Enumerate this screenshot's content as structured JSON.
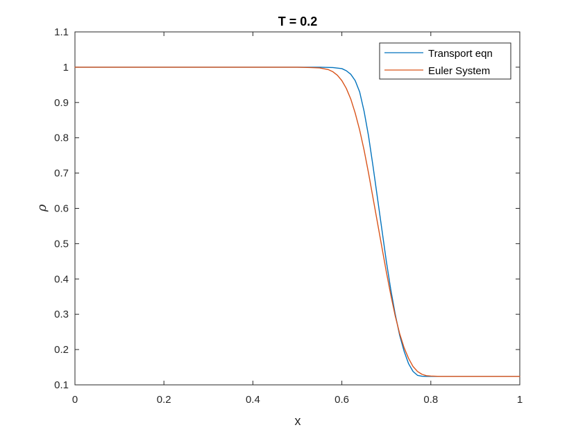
{
  "chart_data": {
    "type": "line",
    "title": "T = 0.2",
    "xlabel": "x",
    "ylabel": "ρ",
    "xlim": [
      0,
      1
    ],
    "ylim": [
      0.1,
      1.1
    ],
    "xticks": [
      "0",
      "0.2",
      "0.4",
      "0.6",
      "0.8",
      "1"
    ],
    "yticks": [
      "0.1",
      "0.2",
      "0.3",
      "0.4",
      "0.5",
      "0.6",
      "0.7",
      "0.8",
      "0.9",
      "1",
      "1.1"
    ],
    "grid": false,
    "legend": "top-right",
    "series": [
      {
        "name": "Transport eqn",
        "color": "#0072BD",
        "x": [
          0,
          0.5,
          0.55,
          0.58,
          0.6,
          0.61,
          0.62,
          0.63,
          0.64,
          0.65,
          0.66,
          0.67,
          0.68,
          0.69,
          0.7,
          0.71,
          0.72,
          0.73,
          0.74,
          0.75,
          0.76,
          0.77,
          0.78,
          0.79,
          0.8,
          0.81,
          0.82,
          0.85,
          0.9,
          1.0
        ],
        "values": [
          1,
          1,
          1,
          0.999,
          0.996,
          0.99,
          0.98,
          0.962,
          0.93,
          0.875,
          0.805,
          0.72,
          0.63,
          0.54,
          0.45,
          0.37,
          0.3,
          0.24,
          0.195,
          0.16,
          0.138,
          0.127,
          0.1245,
          0.124,
          0.124,
          0.124,
          0.124,
          0.124,
          0.124,
          0.124
        ]
      },
      {
        "name": "Euler System",
        "color": "#D95319",
        "x": [
          0,
          0.5,
          0.53,
          0.55,
          0.57,
          0.58,
          0.59,
          0.6,
          0.61,
          0.62,
          0.63,
          0.64,
          0.65,
          0.66,
          0.67,
          0.68,
          0.69,
          0.7,
          0.71,
          0.72,
          0.73,
          0.74,
          0.75,
          0.76,
          0.77,
          0.78,
          0.79,
          0.8,
          0.81,
          0.82,
          0.85,
          0.9,
          1.0
        ],
        "values": [
          1,
          1,
          0.999,
          0.998,
          0.993,
          0.987,
          0.977,
          0.962,
          0.94,
          0.91,
          0.87,
          0.822,
          0.765,
          0.7,
          0.63,
          0.56,
          0.49,
          0.42,
          0.355,
          0.295,
          0.245,
          0.205,
          0.175,
          0.152,
          0.138,
          0.13,
          0.126,
          0.125,
          0.1245,
          0.124,
          0.124,
          0.124,
          0.124
        ]
      }
    ]
  }
}
